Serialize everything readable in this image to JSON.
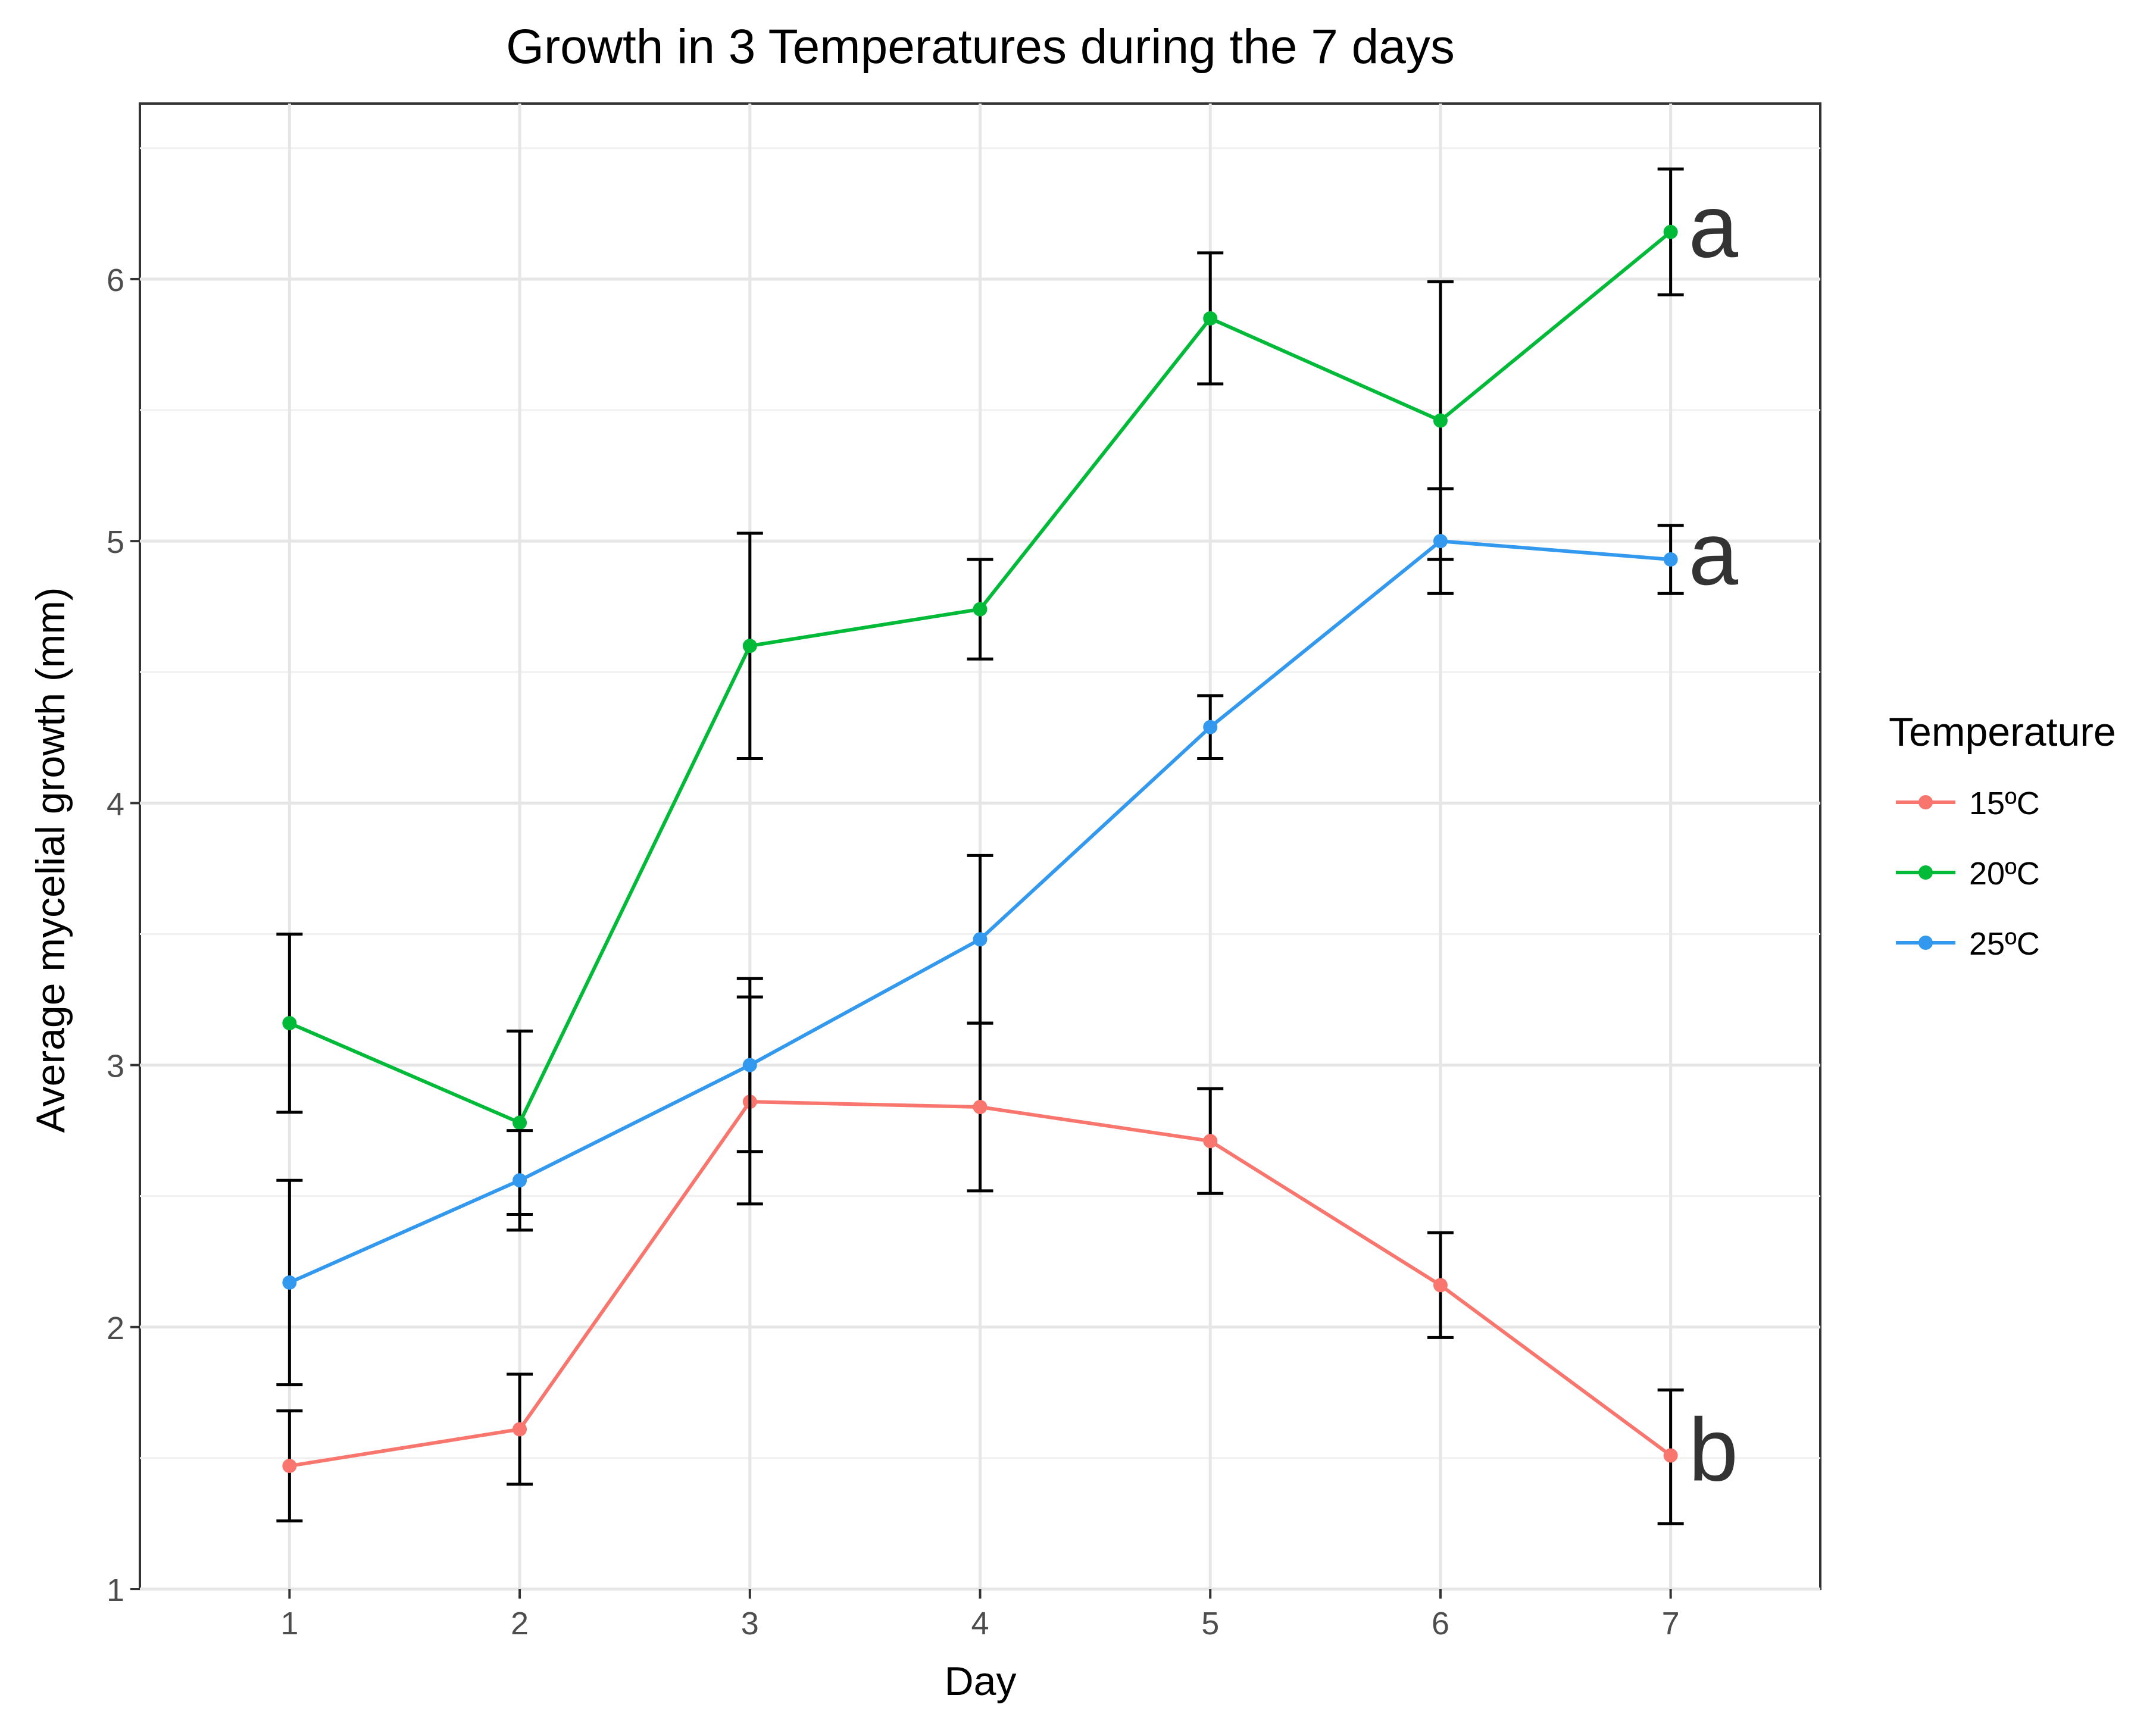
{
  "chart_data": {
    "type": "line",
    "title": "Growth in 3 Temperatures during the 7 days",
    "xlabel": "Day",
    "ylabel": "Average mycelial growth (mm)",
    "x": [
      1,
      2,
      3,
      4,
      5,
      6,
      7
    ],
    "x_ticks": [
      1,
      2,
      3,
      4,
      5,
      6,
      7
    ],
    "xlim": [
      0.35,
      7.65
    ],
    "ylim": [
      1,
      6.67
    ],
    "y_ticks": [
      1,
      2,
      3,
      4,
      5,
      6
    ],
    "y_minor_ticks": [
      1.5,
      2.5,
      3.5,
      4.5,
      5.5,
      6.5
    ],
    "grid": true,
    "legend": {
      "title": "Temperature",
      "position": "right"
    },
    "series": [
      {
        "name": "15ºC",
        "color": "#F8766D",
        "values": [
          1.47,
          1.61,
          2.86,
          2.84,
          2.71,
          2.16,
          1.51
        ],
        "err_low": [
          1.26,
          1.4,
          2.47,
          2.52,
          2.51,
          1.96,
          1.25
        ],
        "err_high": [
          1.68,
          1.82,
          3.26,
          3.16,
          2.91,
          2.36,
          1.76
        ],
        "end_label": "b"
      },
      {
        "name": "20ºC",
        "color": "#00BA38",
        "values": [
          3.16,
          2.78,
          4.6,
          4.74,
          5.85,
          5.46,
          6.18
        ],
        "err_low": [
          2.82,
          2.43,
          4.17,
          4.55,
          5.6,
          4.93,
          5.94
        ],
        "err_high": [
          3.5,
          3.13,
          5.03,
          4.93,
          6.1,
          5.99,
          6.42
        ],
        "end_label": "a"
      },
      {
        "name": "25ºC",
        "color": "#3399EE",
        "values": [
          2.17,
          2.56,
          3.0,
          3.48,
          4.29,
          5.0,
          4.93
        ],
        "err_low": [
          1.78,
          2.37,
          2.67,
          3.16,
          4.17,
          4.8,
          4.8
        ],
        "err_high": [
          2.56,
          2.75,
          3.33,
          3.8,
          4.41,
          5.2,
          5.06
        ],
        "end_label": "a"
      }
    ]
  }
}
